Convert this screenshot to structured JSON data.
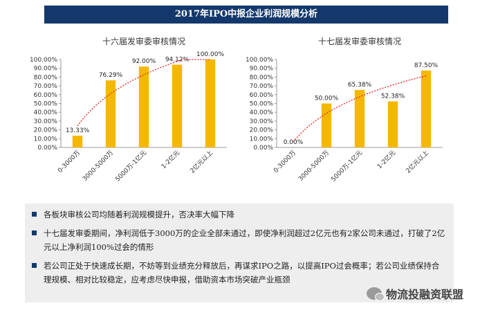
{
  "header": {
    "title": "2017年IPO中报企业利润规模分析"
  },
  "chart_data": [
    {
      "type": "bar",
      "title": "十六届发审委审核情况",
      "categories": [
        "0-3000万",
        "3000-5000万",
        "5000万-1亿元",
        "1-2亿元",
        "2亿元以上"
      ],
      "values": [
        13.33,
        76.29,
        92.0,
        94.12,
        100.0
      ],
      "value_labels": [
        "13.33%",
        "76.29%",
        "92.00%",
        "94.12%",
        "100.00%"
      ],
      "ylim": [
        0,
        100
      ],
      "yticks": [
        "0.00%",
        "10.00%",
        "20.00%",
        "30.00%",
        "40.00%",
        "50.00%",
        "60.00%",
        "70.00%",
        "80.00%",
        "90.00%",
        "100.00%"
      ],
      "bar_color": "#f5b800",
      "trendline": "logarithmic",
      "trend_color": "#e02020",
      "grid": false
    },
    {
      "type": "bar",
      "title": "十七届发审委审核情况",
      "categories": [
        "0-3000万",
        "3000-5000万",
        "5000万-1亿元",
        "1-2亿元",
        "2亿元以上"
      ],
      "values": [
        0.0,
        50.0,
        65.38,
        52.38,
        87.5
      ],
      "value_labels": [
        "0.00%",
        "50.00%",
        "65.38%",
        "52.38%",
        "87.50%"
      ],
      "ylim": [
        0,
        100
      ],
      "yticks": [
        "0.00%",
        "10.00%",
        "20.00%",
        "30.00%",
        "40.00%",
        "50.00%",
        "60.00%",
        "70.00%",
        "80.00%",
        "90.00%",
        "100.00%"
      ],
      "bar_color": "#f5b800",
      "trendline": "logarithmic",
      "trend_color": "#e02020",
      "grid": false
    }
  ],
  "bullets": [
    "各板块审核公司均随着利润规模提升，否决率大幅下降",
    "十七届发审委期间，净利润低于3000万的企业全部未通过，即使净利润超过2亿元也有2家公司未通过，打破了2亿元以上净利润100%过会的情形",
    "若公司正处于快速成长期，不妨等到业绩充分释放后，再谋求IPO之路，以提高IPO过会概率；若公司业绩保持合理规模、相对比较稳定，应考虑尽快申报，借助资本市场突破产业瓶颈"
  ],
  "watermark": {
    "text": "物流投融资联盟",
    "icon": "wechat-icon"
  },
  "colors": {
    "title_bg": "#14386b",
    "panel_bg": "#eeeeee",
    "bullet_mark": "#14386b"
  }
}
